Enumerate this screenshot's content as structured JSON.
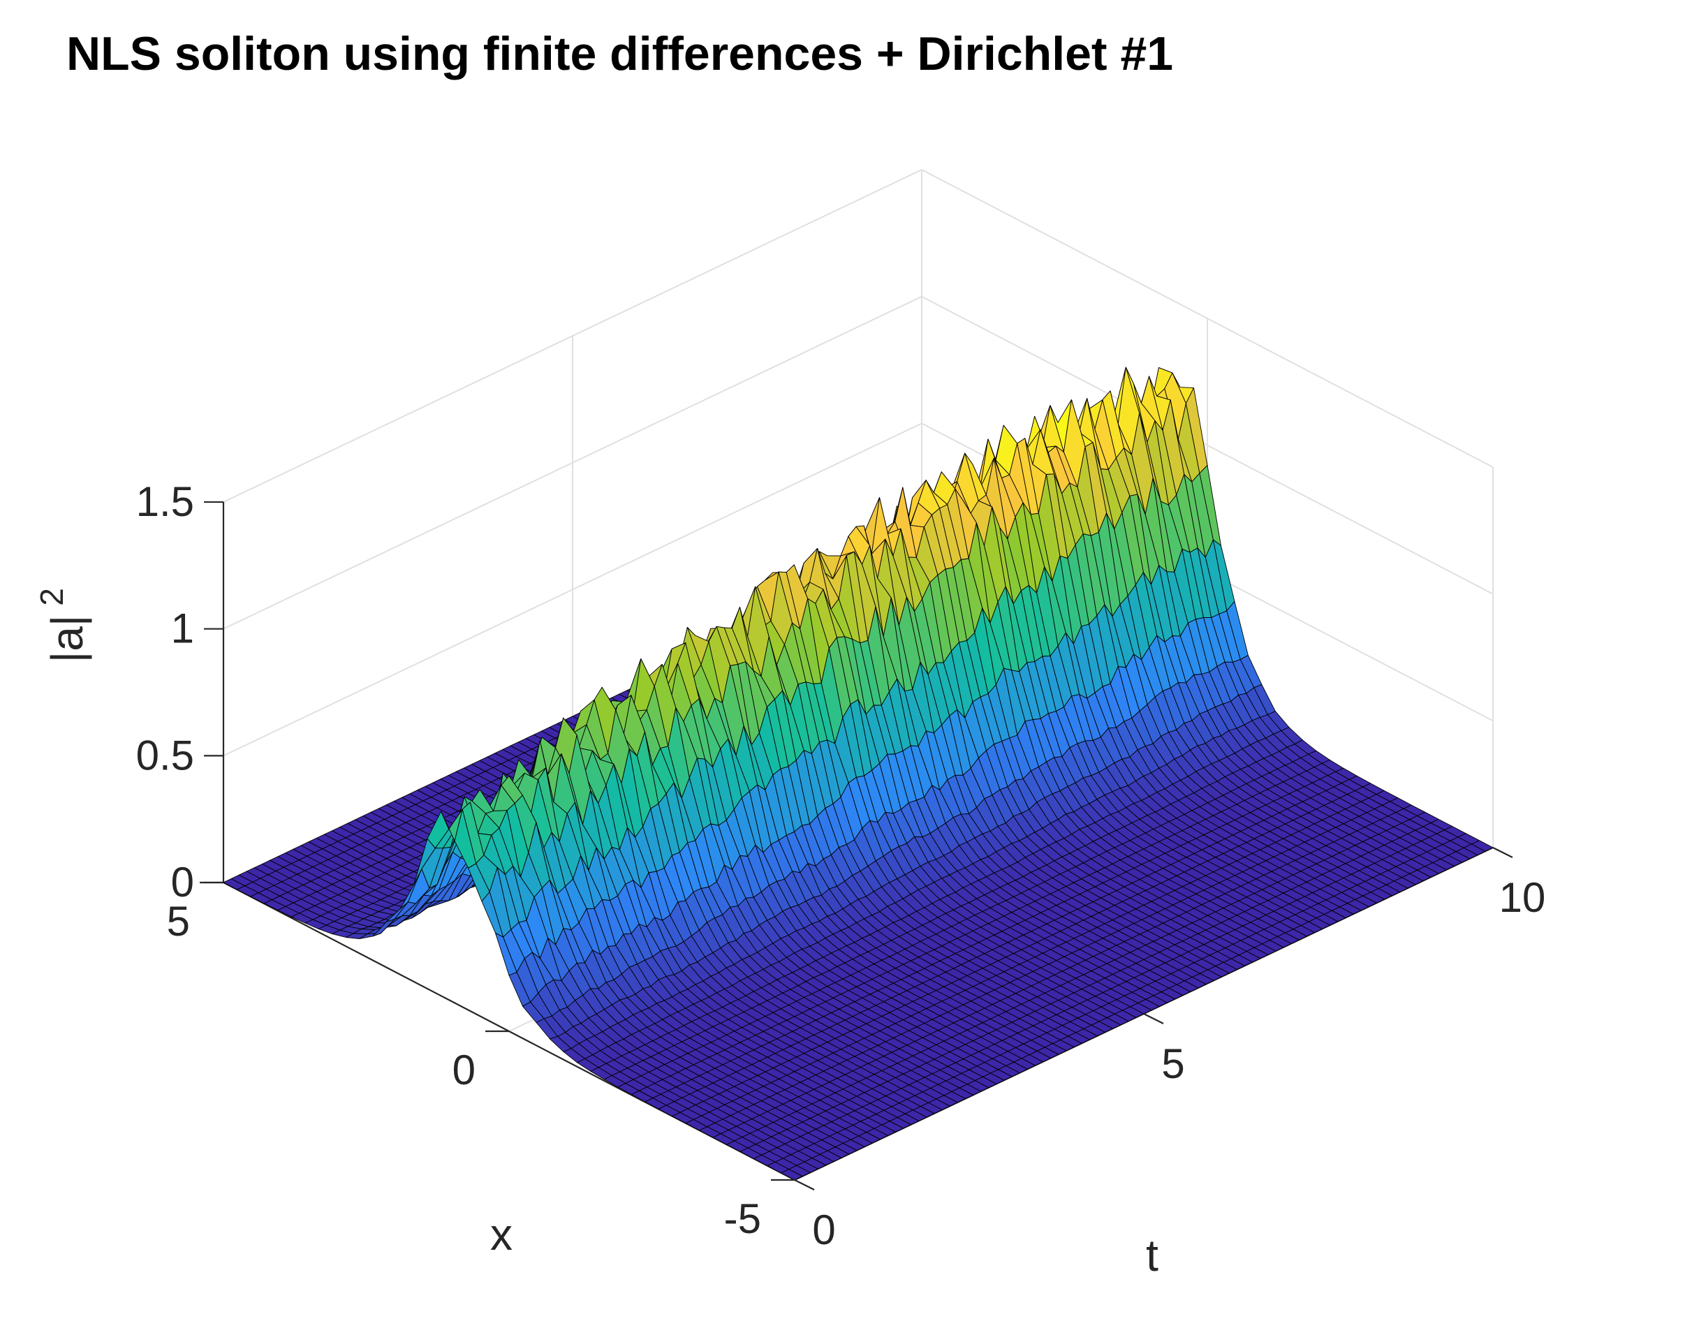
{
  "chart_data": {
    "type": "surface",
    "title": "NLS soliton using finite differences + Dirichlet #1",
    "xlabel": "t",
    "ylabel": "x",
    "zlabel": "|a|",
    "zlabel_superscript": "2",
    "t_range": [
      0,
      10
    ],
    "x_range": [
      -5,
      5
    ],
    "z_range": [
      0,
      1.5
    ],
    "t_ticks": [
      "0",
      "5",
      "10"
    ],
    "x_ticks": [
      "-5",
      "0",
      "5"
    ],
    "z_ticks": [
      "0",
      "0.5",
      "1",
      "1.5"
    ],
    "grid": true,
    "colormap": "parula",
    "colors": {
      "parula_low": "#3e26a8",
      "parula_mid_low": "#2e87f7",
      "parula_mid": "#12bea0",
      "parula_mid_high": "#97ca2b",
      "parula_high": "#fac63d",
      "parula_top": "#f9fb15",
      "edge": "#000000",
      "grid": "#e0e0e0",
      "axis": "#262626"
    },
    "soliton": {
      "t": [
        0,
        1,
        2,
        3,
        4,
        5,
        6,
        7,
        8,
        9,
        10
      ],
      "peak_value": [
        0.67,
        0.78,
        0.87,
        0.95,
        1.03,
        1.1,
        1.15,
        1.2,
        1.24,
        1.25,
        1.22
      ],
      "center_x": [
        1.0,
        0.9,
        0.9,
        0.8,
        0.8,
        0.7,
        0.7,
        0.6,
        0.6,
        0.5,
        0.5
      ],
      "half_width_x": 2.6,
      "noise_amplitude": 0.08
    }
  }
}
